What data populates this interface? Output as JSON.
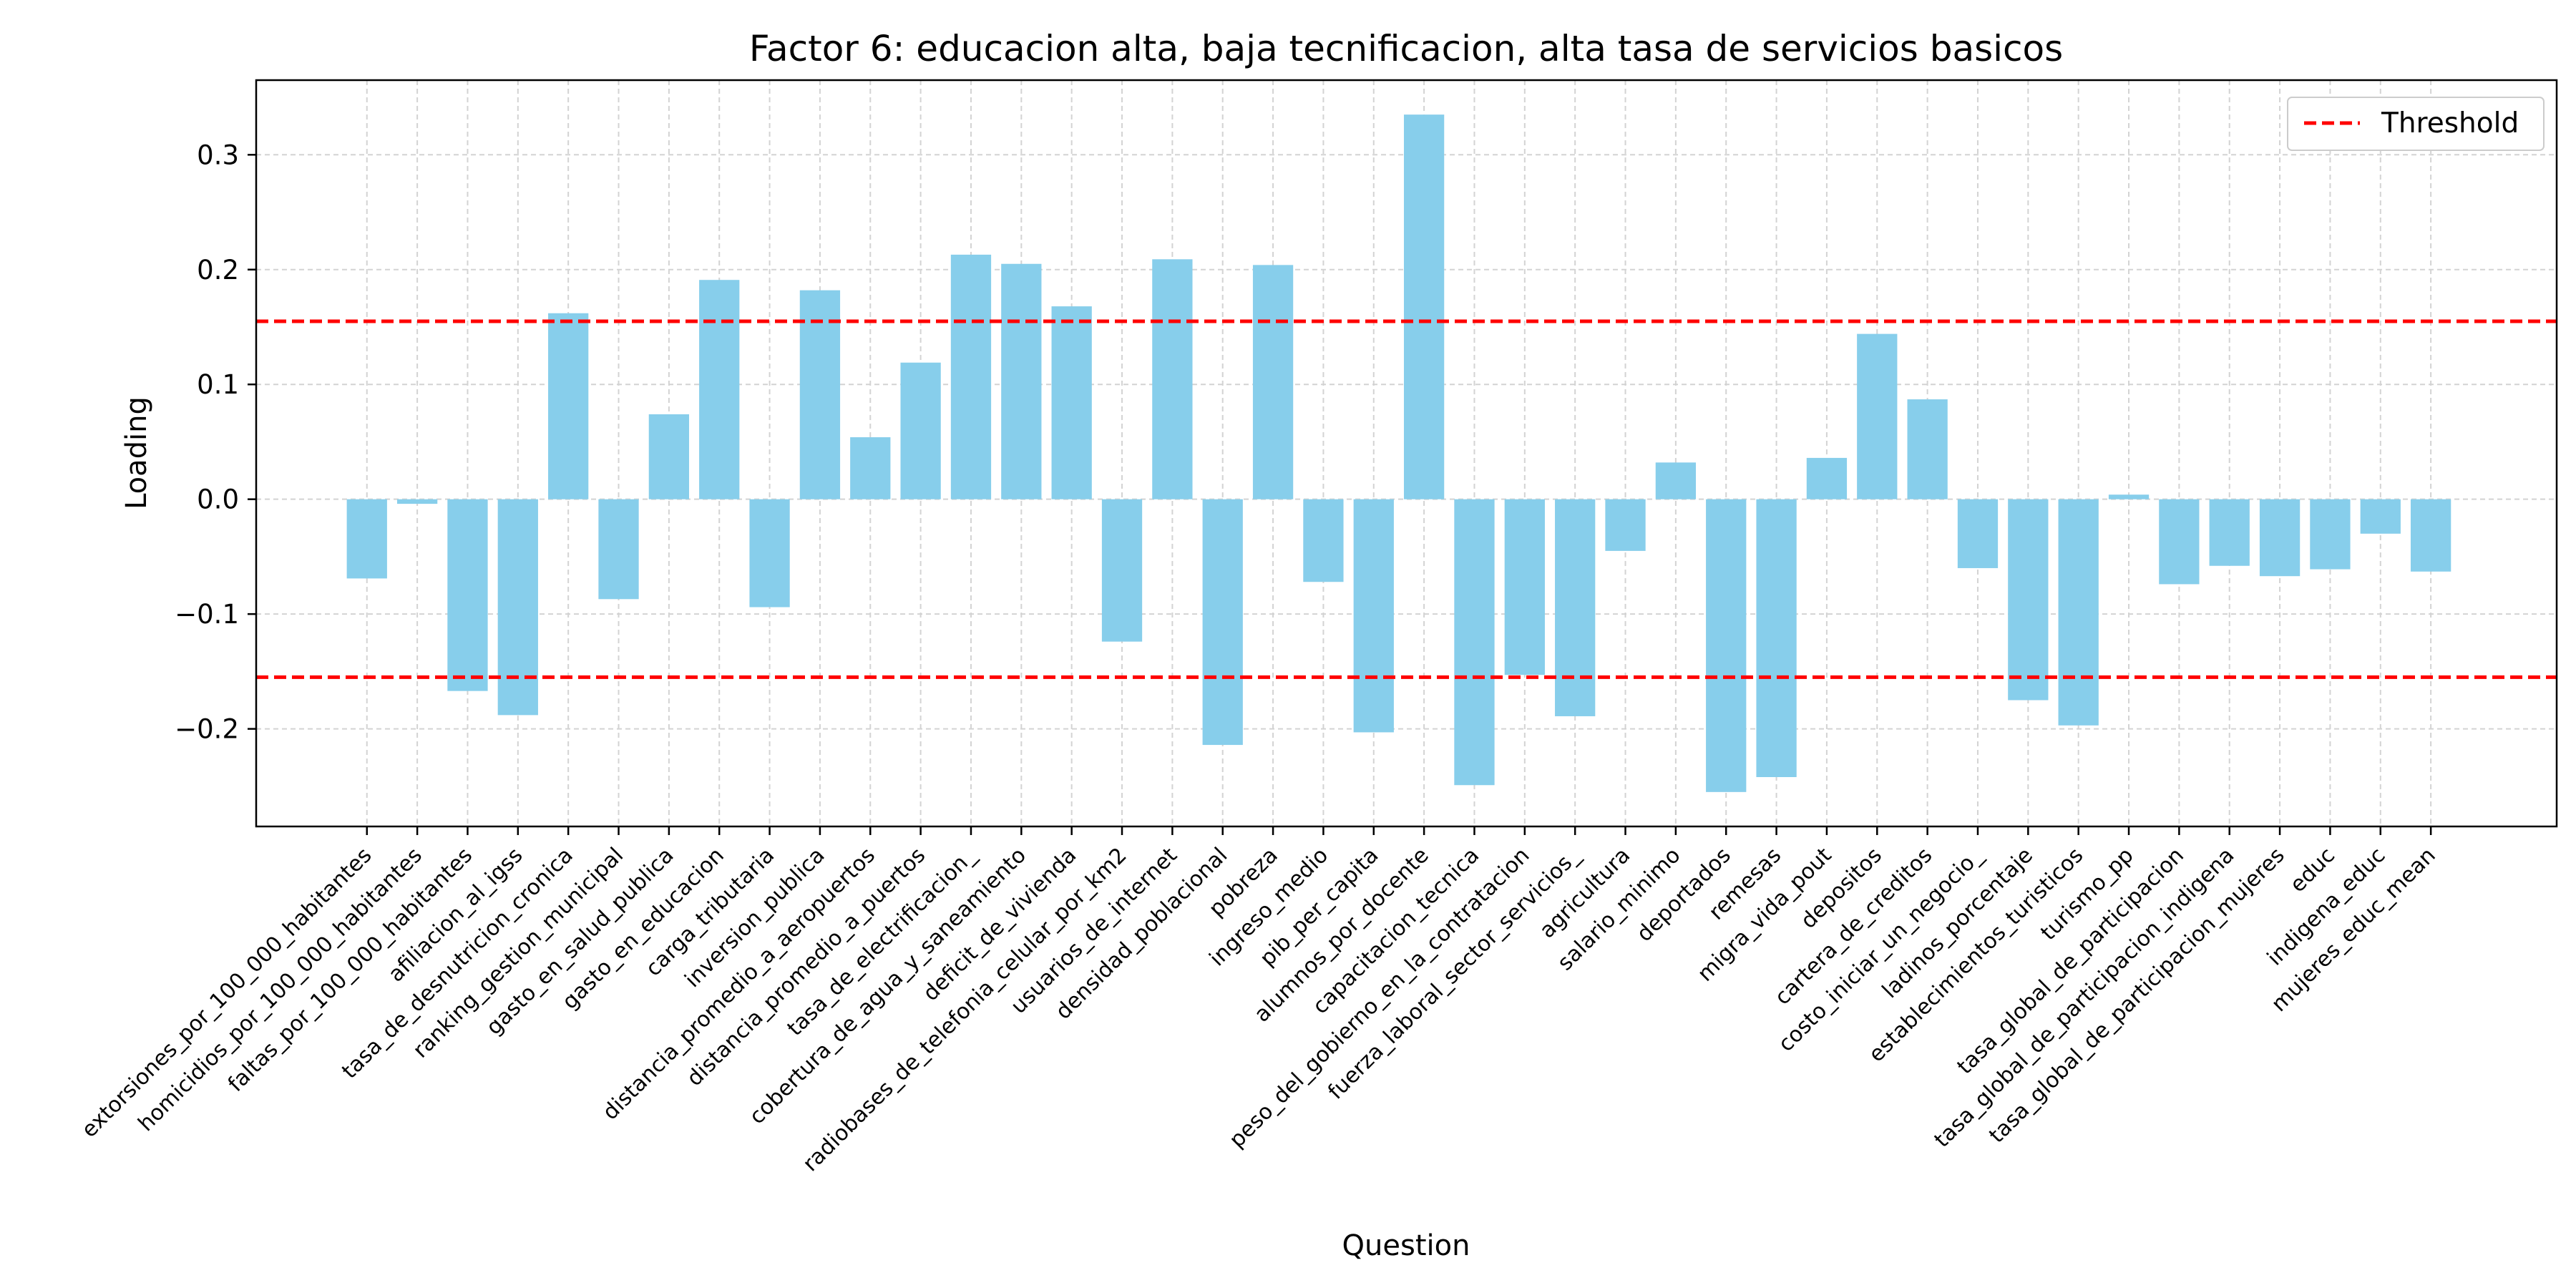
{
  "chart_data": {
    "type": "bar",
    "title": "Factor 6: educacion alta, baja tecnificacion, alta tasa de servicios basicos",
    "xlabel": "Question",
    "ylabel": "Loading",
    "ylim": [
      -0.285,
      0.365
    ],
    "yticks": [
      -0.2,
      -0.1,
      0.0,
      0.1,
      0.2,
      0.3
    ],
    "ytick_labels": [
      "−0.2",
      "−0.1",
      "0.0",
      "0.1",
      "0.2",
      "0.3"
    ],
    "grid": true,
    "legend_position": "top-right",
    "colors": {
      "bar": "#87ceeb",
      "threshold": "#ff0000",
      "grid": "#d3d3d3"
    },
    "threshold": {
      "label": "Threshold",
      "values": [
        0.155,
        -0.155
      ]
    },
    "categories": [
      "extorsiones_por_100_000_habitantes",
      "homicidios_por_100_000_habitantes",
      "faltas_por_100_000_habitantes",
      "afiliacion_al_igss",
      "tasa_de_desnutricion_cronica",
      "ranking_gestion_municipal",
      "gasto_en_salud_publica",
      "gasto_en_educacion",
      "carga_tributaria",
      "inversion_publica",
      "distancia_promedio_a_aeropuertos",
      "distancia_promedio_a_puertos",
      "tasa_de_electrificacion_",
      "cobertura_de_agua_y_saneamiento",
      "deficit_de_vivienda",
      "radiobases_de_telefonia_celular_por_km2",
      "usuarios_de_internet",
      "densidad_poblacional",
      "pobreza",
      "ingreso_medio",
      "pib_per_capita",
      "alumnos_por_docente",
      "capacitacion_tecnica",
      "peso_del_gobierno_en_la_contratacion",
      "fuerza_laboral_sector_servicios_",
      "agricultura",
      "salario_minimo",
      "deportados",
      "remesas",
      "migra_vida_pout",
      "depositos",
      "cartera_de_creditos",
      "costo_iniciar_un_negocio_",
      "ladinos_porcentaje",
      "establecimientos_turisticos",
      "turismo_pp",
      "tasa_global_de_participacion",
      "tasa_global_de_participacion_indigena",
      "tasa_global_de_participacion_mujeres",
      "educ",
      "indigena_educ",
      "mujeres_educ_mean"
    ],
    "values": [
      -0.069,
      -0.004,
      -0.167,
      -0.188,
      0.162,
      -0.087,
      0.074,
      0.191,
      -0.094,
      0.182,
      0.054,
      0.119,
      0.213,
      0.205,
      0.168,
      -0.124,
      0.209,
      -0.214,
      0.204,
      -0.072,
      -0.203,
      0.335,
      -0.249,
      -0.153,
      -0.189,
      -0.045,
      0.032,
      -0.255,
      -0.242,
      0.036,
      0.144,
      0.087,
      -0.06,
      -0.175,
      -0.197,
      0.004,
      -0.074,
      -0.058,
      -0.067,
      -0.061,
      -0.03,
      -0.063
    ]
  }
}
